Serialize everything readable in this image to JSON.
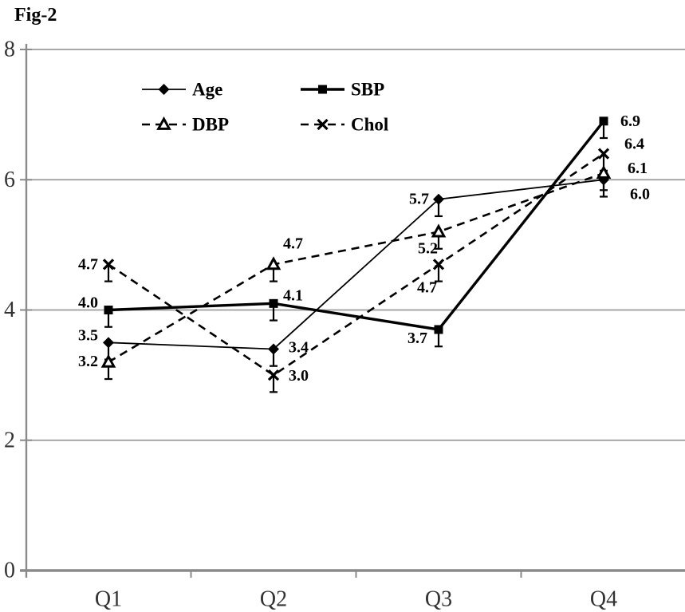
{
  "figure_label": "Fig-2",
  "colors": {
    "series": "#000000",
    "axis": "#8a8a8a",
    "gridline": "#9b9b9b",
    "tick_label": "#333333",
    "background": "#ffffff"
  },
  "chart_data": {
    "type": "line",
    "title": "Fig-2",
    "categories": [
      "Q1",
      "Q2",
      "Q3",
      "Q4"
    ],
    "ylim": [
      0,
      8
    ],
    "yticks": [
      0,
      2,
      4,
      6,
      8
    ],
    "grid": true,
    "legend_position": "top-center-inside",
    "error_bars": {
      "direction": "down",
      "length_units": 0.26
    },
    "series": [
      {
        "name": "Age",
        "marker": "diamond",
        "line_style": "solid",
        "line_weight": "thin",
        "values": [
          3.5,
          3.4,
          5.7,
          6.0
        ],
        "data_labels": [
          "3.5",
          "3.4",
          "5.7",
          "6.0"
        ],
        "label_offsets": [
          [
            -13,
            -9
          ],
          [
            19,
            -2
          ],
          [
            -12,
            0
          ],
          [
            33,
            18
          ]
        ]
      },
      {
        "name": "SBP",
        "marker": "square",
        "line_style": "solid",
        "line_weight": "thick",
        "values": [
          4.0,
          4.1,
          3.7,
          6.9
        ],
        "data_labels": [
          "4.0",
          "4.1",
          "3.7",
          "6.9"
        ],
        "label_offsets": [
          [
            -13,
            -9
          ],
          [
            12,
            -10
          ],
          [
            -14,
            11
          ],
          [
            21,
            0
          ]
        ]
      },
      {
        "name": "DBP",
        "marker": "triangle-open",
        "line_style": "dashed",
        "line_weight": "medium",
        "values": [
          3.2,
          4.7,
          5.2,
          6.1
        ],
        "data_labels": [
          "3.2",
          "4.7",
          "5.2",
          "6.1"
        ],
        "label_offsets": [
          [
            -13,
            -1
          ],
          [
            12,
            -26
          ],
          [
            -1,
            21
          ],
          [
            30,
            -6
          ]
        ]
      },
      {
        "name": "Chol",
        "marker": "x",
        "line_style": "dashed",
        "line_weight": "medium",
        "values": [
          4.7,
          3.0,
          4.7,
          6.4
        ],
        "data_labels": [
          "4.7",
          "3.0",
          "4.7",
          "6.4"
        ],
        "label_offsets": [
          [
            -13,
            0
          ],
          [
            19,
            1
          ],
          [
            -2,
            29
          ],
          [
            26,
            -12
          ]
        ]
      }
    ]
  }
}
